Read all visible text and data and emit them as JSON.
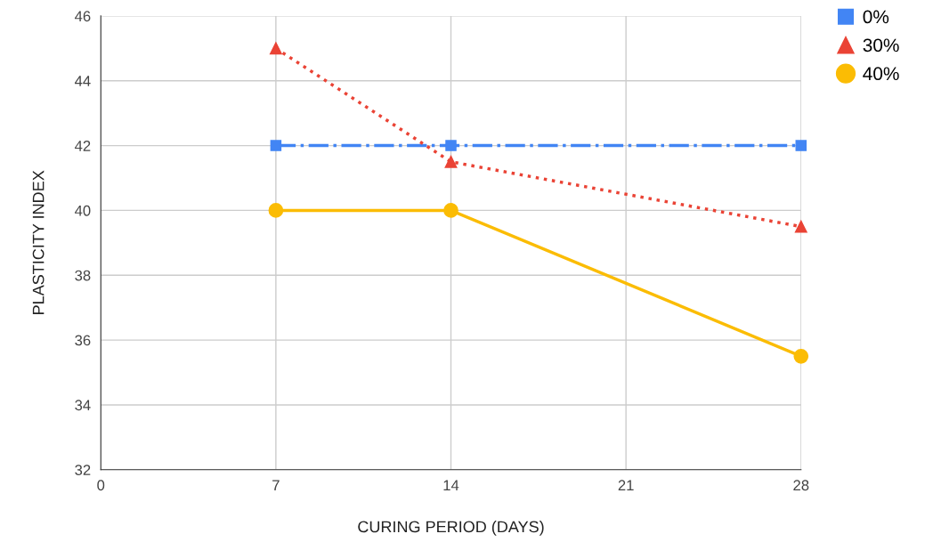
{
  "chart_data": {
    "type": "line",
    "xlabel": "CURING PERIOD (DAYS)",
    "ylabel": "PLASTICITY INDEX",
    "x": [
      7,
      14,
      28
    ],
    "series": [
      {
        "name": "0%",
        "color": "#4285f4",
        "values": [
          42,
          42,
          42
        ],
        "marker": "square",
        "line_style": "dashdot"
      },
      {
        "name": "30%",
        "color": "#ea4335",
        "values": [
          45,
          41.5,
          39.5
        ],
        "marker": "triangle",
        "line_style": "dotted"
      },
      {
        "name": "40%",
        "color": "#fbbc04",
        "values": [
          40,
          40,
          35.5
        ],
        "marker": "circle",
        "line_style": "solid"
      }
    ],
    "xlim": [
      0,
      28
    ],
    "xticks": [
      0,
      7,
      14,
      21,
      28
    ],
    "ylim": [
      32,
      46
    ],
    "yticks": [
      32,
      34,
      36,
      38,
      40,
      42,
      44,
      46
    ],
    "grid": true,
    "legend": "top right"
  }
}
